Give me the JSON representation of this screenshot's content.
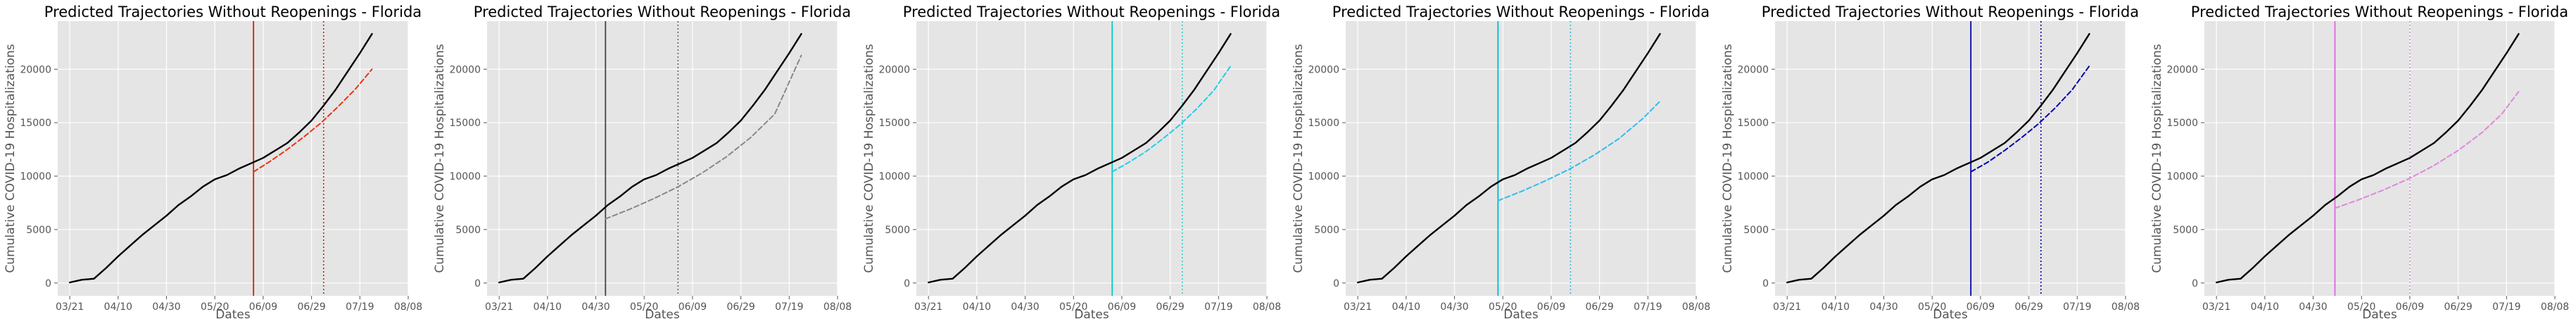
{
  "figure": {
    "shared": {
      "xlabel": "Dates",
      "ylabel": "Cumulative COVID-19 Hospitalizations",
      "x_ticks": [
        "03/21",
        "04/10",
        "04/30",
        "05/20",
        "06/09",
        "06/29",
        "07/19",
        "08/08"
      ],
      "y_ticks": [
        "0",
        "5000",
        "10000",
        "15000",
        "20000"
      ]
    }
  },
  "chart_data": [
    {
      "type": "line",
      "title": "Predicted Trajectories Without Reopenings - Florida",
      "xlabel": "Dates",
      "ylabel": "Cumulative COVID-19 Hospitalizations",
      "xlim": [
        "2020-03-16",
        "2020-08-08"
      ],
      "ylim": [
        -1200,
        24500
      ],
      "grid": true,
      "colors": {
        "observed": "#000000",
        "predicted": "#ee3311",
        "cutoff_line": "#cc2200",
        "forecast_line": "#cc2200"
      },
      "cutoff_date": "2020-06-05",
      "forecast_date": "2020-07-04",
      "series": [
        {
          "role": "observed",
          "style": "solid",
          "x": [
            "2020-03-21",
            "2020-03-26",
            "2020-03-31",
            "2020-04-05",
            "2020-04-10",
            "2020-04-15",
            "2020-04-20",
            "2020-04-25",
            "2020-04-30",
            "2020-05-05",
            "2020-05-10",
            "2020-05-15",
            "2020-05-20",
            "2020-05-25",
            "2020-05-30",
            "2020-06-04",
            "2020-06-09",
            "2020-06-14",
            "2020-06-19",
            "2020-06-24",
            "2020-06-29",
            "2020-07-04",
            "2020-07-09",
            "2020-07-14",
            "2020-07-19",
            "2020-07-24"
          ],
          "y": [
            50,
            300,
            400,
            1400,
            2500,
            3500,
            4500,
            5400,
            6300,
            7300,
            8100,
            9000,
            9700,
            10100,
            10700,
            11200,
            11700,
            12400,
            13100,
            14100,
            15200,
            16600,
            18100,
            19800,
            21500,
            23300
          ]
        },
        {
          "role": "predicted",
          "style": "dashed",
          "x": [
            "2020-06-05",
            "2020-06-12",
            "2020-06-19",
            "2020-06-26",
            "2020-07-03",
            "2020-07-10",
            "2020-07-17",
            "2020-07-24"
          ],
          "y": [
            10400,
            11400,
            12500,
            13700,
            15000,
            16500,
            18100,
            20000
          ]
        }
      ]
    },
    {
      "type": "line",
      "title": "Predicted Trajectories Without Reopenings - Florida",
      "xlabel": "Dates",
      "ylabel": "Cumulative COVID-19 Hospitalizations",
      "xlim": [
        "2020-03-16",
        "2020-08-08"
      ],
      "ylim": [
        -1200,
        24500
      ],
      "grid": true,
      "colors": {
        "observed": "#000000",
        "predicted": "#888888",
        "cutoff_line": "#444444",
        "forecast_line": "#666666"
      },
      "cutoff_date": "2020-05-04",
      "forecast_date": "2020-06-03",
      "series": [
        {
          "role": "observed",
          "style": "solid",
          "x": [
            "2020-03-21",
            "2020-03-26",
            "2020-03-31",
            "2020-04-05",
            "2020-04-10",
            "2020-04-15",
            "2020-04-20",
            "2020-04-25",
            "2020-04-30",
            "2020-05-05",
            "2020-05-10",
            "2020-05-15",
            "2020-05-20",
            "2020-05-25",
            "2020-05-30",
            "2020-06-04",
            "2020-06-09",
            "2020-06-14",
            "2020-06-19",
            "2020-06-24",
            "2020-06-29",
            "2020-07-04",
            "2020-07-09",
            "2020-07-14",
            "2020-07-19",
            "2020-07-24"
          ],
          "y": [
            50,
            300,
            400,
            1400,
            2500,
            3500,
            4500,
            5400,
            6300,
            7300,
            8100,
            9000,
            9700,
            10100,
            10700,
            11200,
            11700,
            12400,
            13100,
            14100,
            15200,
            16600,
            18100,
            19800,
            21500,
            23300
          ]
        },
        {
          "role": "predicted",
          "style": "dashed",
          "x": [
            "2020-05-04",
            "2020-05-14",
            "2020-05-24",
            "2020-06-03",
            "2020-06-13",
            "2020-06-23",
            "2020-07-03",
            "2020-07-13",
            "2020-07-24"
          ],
          "y": [
            6000,
            6900,
            7900,
            9000,
            10300,
            11800,
            13600,
            15800,
            21300
          ]
        }
      ]
    },
    {
      "type": "line",
      "title": "Predicted Trajectories Without Reopenings - Florida",
      "xlabel": "Dates",
      "ylabel": "Cumulative COVID-19 Hospitalizations",
      "xlim": [
        "2020-03-16",
        "2020-08-08"
      ],
      "ylim": [
        -1200,
        24500
      ],
      "grid": true,
      "colors": {
        "observed": "#000000",
        "predicted": "#22ccee",
        "cutoff_line": "#00cccc",
        "forecast_line": "#33cccc"
      },
      "cutoff_date": "2020-06-05",
      "forecast_date": "2020-07-04",
      "series": [
        {
          "role": "observed",
          "style": "solid",
          "x": [
            "2020-03-21",
            "2020-03-26",
            "2020-03-31",
            "2020-04-05",
            "2020-04-10",
            "2020-04-15",
            "2020-04-20",
            "2020-04-25",
            "2020-04-30",
            "2020-05-05",
            "2020-05-10",
            "2020-05-15",
            "2020-05-20",
            "2020-05-25",
            "2020-05-30",
            "2020-06-04",
            "2020-06-09",
            "2020-06-14",
            "2020-06-19",
            "2020-06-24",
            "2020-06-29",
            "2020-07-04",
            "2020-07-09",
            "2020-07-14",
            "2020-07-19",
            "2020-07-24"
          ],
          "y": [
            50,
            300,
            400,
            1400,
            2500,
            3500,
            4500,
            5400,
            6300,
            7300,
            8100,
            9000,
            9700,
            10100,
            10700,
            11200,
            11700,
            12400,
            13100,
            14100,
            15200,
            16600,
            18100,
            19800,
            21500,
            23300
          ]
        },
        {
          "role": "predicted",
          "style": "dashed",
          "x": [
            "2020-06-05",
            "2020-06-12",
            "2020-06-19",
            "2020-06-26",
            "2020-07-03",
            "2020-07-10",
            "2020-07-17",
            "2020-07-24"
          ],
          "y": [
            10400,
            11300,
            12300,
            13500,
            14800,
            16300,
            18000,
            20300
          ]
        }
      ]
    },
    {
      "type": "line",
      "title": "Predicted Trajectories Without Reopenings - Florida",
      "xlabel": "Dates",
      "ylabel": "Cumulative COVID-19 Hospitalizations",
      "xlim": [
        "2020-03-16",
        "2020-08-08"
      ],
      "ylim": [
        -1200,
        24500
      ],
      "grid": true,
      "colors": {
        "observed": "#000000",
        "predicted": "#33bbee",
        "cutoff_line": "#00bbcc",
        "forecast_line": "#33bbdd"
      },
      "cutoff_date": "2020-05-18",
      "forecast_date": "2020-06-17",
      "series": [
        {
          "role": "observed",
          "style": "solid",
          "x": [
            "2020-03-21",
            "2020-03-26",
            "2020-03-31",
            "2020-04-05",
            "2020-04-10",
            "2020-04-15",
            "2020-04-20",
            "2020-04-25",
            "2020-04-30",
            "2020-05-05",
            "2020-05-10",
            "2020-05-15",
            "2020-05-20",
            "2020-05-25",
            "2020-05-30",
            "2020-06-04",
            "2020-06-09",
            "2020-06-14",
            "2020-06-19",
            "2020-06-24",
            "2020-06-29",
            "2020-07-04",
            "2020-07-09",
            "2020-07-14",
            "2020-07-19",
            "2020-07-24"
          ],
          "y": [
            50,
            300,
            400,
            1400,
            2500,
            3500,
            4500,
            5400,
            6300,
            7300,
            8100,
            9000,
            9700,
            10100,
            10700,
            11200,
            11700,
            12400,
            13100,
            14100,
            15200,
            16600,
            18100,
            19800,
            21500,
            23300
          ]
        },
        {
          "role": "predicted",
          "style": "dashed",
          "x": [
            "2020-05-18",
            "2020-05-28",
            "2020-06-07",
            "2020-06-17",
            "2020-06-27",
            "2020-07-07",
            "2020-07-17",
            "2020-07-24"
          ],
          "y": [
            7700,
            8600,
            9600,
            10700,
            12000,
            13500,
            15400,
            17000
          ]
        }
      ]
    },
    {
      "type": "line",
      "title": "Predicted Trajectories Without Reopenings - Florida",
      "xlabel": "Dates",
      "ylabel": "Cumulative COVID-19 Hospitalizations",
      "xlim": [
        "2020-03-16",
        "2020-08-08"
      ],
      "ylim": [
        -1200,
        24500
      ],
      "grid": true,
      "colors": {
        "observed": "#000000",
        "predicted": "#0000aa",
        "cutoff_line": "#0000aa",
        "forecast_line": "#0000aa"
      },
      "cutoff_date": "2020-06-05",
      "forecast_date": "2020-07-04",
      "series": [
        {
          "role": "observed",
          "style": "solid",
          "x": [
            "2020-03-21",
            "2020-03-26",
            "2020-03-31",
            "2020-04-05",
            "2020-04-10",
            "2020-04-15",
            "2020-04-20",
            "2020-04-25",
            "2020-04-30",
            "2020-05-05",
            "2020-05-10",
            "2020-05-15",
            "2020-05-20",
            "2020-05-25",
            "2020-05-30",
            "2020-06-04",
            "2020-06-09",
            "2020-06-14",
            "2020-06-19",
            "2020-06-24",
            "2020-06-29",
            "2020-07-04",
            "2020-07-09",
            "2020-07-14",
            "2020-07-19",
            "2020-07-24"
          ],
          "y": [
            50,
            300,
            400,
            1400,
            2500,
            3500,
            4500,
            5400,
            6300,
            7300,
            8100,
            9000,
            9700,
            10100,
            10700,
            11200,
            11700,
            12400,
            13100,
            14100,
            15200,
            16600,
            18100,
            19800,
            21500,
            23300
          ]
        },
        {
          "role": "predicted",
          "style": "dashed",
          "x": [
            "2020-06-05",
            "2020-06-12",
            "2020-06-19",
            "2020-06-26",
            "2020-07-03",
            "2020-07-10",
            "2020-07-17",
            "2020-07-24"
          ],
          "y": [
            10400,
            11300,
            12400,
            13600,
            14900,
            16400,
            18100,
            20300
          ]
        }
      ]
    },
    {
      "type": "line",
      "title": "Predicted Trajectories Without Reopenings - Florida",
      "xlabel": "Dates",
      "ylabel": "Cumulative COVID-19 Hospitalizations",
      "xlim": [
        "2020-03-16",
        "2020-08-08"
      ],
      "ylim": [
        -1200,
        24500
      ],
      "grid": true,
      "colors": {
        "observed": "#000000",
        "predicted": "#dd88dd",
        "cutoff_line": "#dd66dd",
        "forecast_line": "#dd88dd"
      },
      "cutoff_date": "2020-05-09",
      "forecast_date": "2020-06-09",
      "series": [
        {
          "role": "observed",
          "style": "solid",
          "x": [
            "2020-03-21",
            "2020-03-26",
            "2020-03-31",
            "2020-04-05",
            "2020-04-10",
            "2020-04-15",
            "2020-04-20",
            "2020-04-25",
            "2020-04-30",
            "2020-05-05",
            "2020-05-10",
            "2020-05-15",
            "2020-05-20",
            "2020-05-25",
            "2020-05-30",
            "2020-06-04",
            "2020-06-09",
            "2020-06-14",
            "2020-06-19",
            "2020-06-24",
            "2020-06-29",
            "2020-07-04",
            "2020-07-09",
            "2020-07-14",
            "2020-07-19",
            "2020-07-24"
          ],
          "y": [
            50,
            300,
            400,
            1400,
            2500,
            3500,
            4500,
            5400,
            6300,
            7300,
            8100,
            9000,
            9700,
            10100,
            10700,
            11200,
            11700,
            12400,
            13100,
            14100,
            15200,
            16600,
            18100,
            19800,
            21500,
            23300
          ]
        },
        {
          "role": "predicted",
          "style": "dashed",
          "x": [
            "2020-05-09",
            "2020-05-19",
            "2020-05-29",
            "2020-06-09",
            "2020-06-19",
            "2020-06-29",
            "2020-07-09",
            "2020-07-17",
            "2020-07-24"
          ],
          "y": [
            7000,
            7800,
            8700,
            9800,
            11000,
            12400,
            14100,
            15800,
            17900
          ]
        }
      ]
    }
  ]
}
